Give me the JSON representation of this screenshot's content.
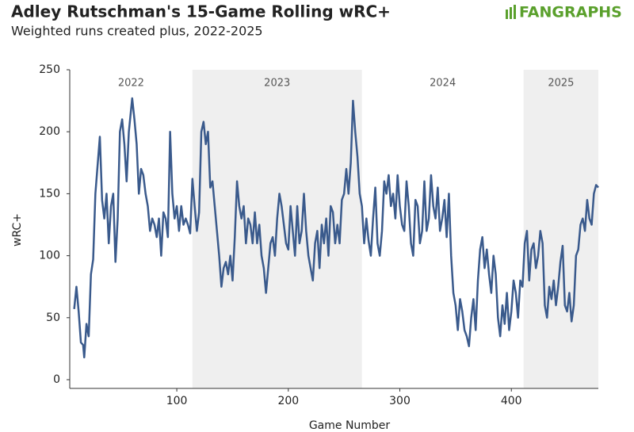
{
  "chart_data": {
    "type": "line",
    "title": "Adley Rutschman's 15-Game Rolling wRC+",
    "subtitle": "Weighted runs created plus, 2022-2025",
    "logo": "FANGRAPHS",
    "x_label": "Game Number",
    "y_label": "wRC+",
    "color": "#3a5a8c",
    "bands": [
      {
        "label": "2022",
        "range": [
          4,
          114
        ],
        "shaded": false
      },
      {
        "label": "2023",
        "range": [
          114,
          266
        ],
        "shaded": true
      },
      {
        "label": "2024",
        "range": [
          266,
          411
        ],
        "shaded": false
      },
      {
        "label": "2025",
        "range": [
          411,
          478
        ],
        "shaded": true
      }
    ],
    "xlim": [
      4,
      478
    ],
    "ylim": [
      0,
      250
    ],
    "xticks": [
      100,
      200,
      300,
      400
    ],
    "yticks": [
      0,
      50,
      100,
      150,
      200,
      250
    ],
    "x": [
      8,
      10,
      12,
      14,
      16,
      17,
      19,
      21,
      23,
      25,
      27,
      31,
      33,
      35,
      37,
      39,
      41,
      43,
      45,
      47,
      49,
      51,
      53,
      55,
      57,
      60,
      62,
      64,
      66,
      68,
      70,
      72,
      74,
      76,
      78,
      80,
      82,
      84,
      86,
      88,
      90,
      92,
      94,
      96,
      98,
      100,
      102,
      104,
      106,
      108,
      110,
      112,
      114,
      116,
      118,
      120,
      122,
      124,
      126,
      128,
      130,
      132,
      134,
      136,
      138,
      140,
      142,
      144,
      146,
      148,
      150,
      152,
      154,
      156,
      158,
      160,
      162,
      164,
      166,
      168,
      170,
      172,
      174,
      176,
      178,
      180,
      182,
      184,
      186,
      188,
      190,
      192,
      194,
      196,
      198,
      200,
      202,
      204,
      206,
      208,
      210,
      212,
      214,
      216,
      218,
      220,
      222,
      224,
      226,
      228,
      230,
      232,
      234,
      236,
      238,
      240,
      242,
      244,
      246,
      248,
      250,
      252,
      254,
      256,
      258,
      260,
      262,
      264,
      266,
      268,
      270,
      272,
      274,
      276,
      278,
      280,
      282,
      284,
      286,
      288,
      290,
      292,
      294,
      296,
      298,
      300,
      302,
      304,
      306,
      308,
      310,
      312,
      314,
      316,
      318,
      320,
      322,
      324,
      326,
      328,
      330,
      332,
      334,
      336,
      338,
      340,
      342,
      344,
      346,
      348,
      350,
      352,
      354,
      356,
      358,
      360,
      362,
      364,
      366,
      368,
      370,
      372,
      374,
      376,
      378,
      380,
      382,
      384,
      386,
      388,
      390,
      392,
      394,
      396,
      398,
      400,
      402,
      404,
      406,
      408,
      410,
      412,
      414,
      416,
      418,
      420,
      422,
      424,
      426,
      428,
      430,
      432,
      434,
      436,
      438,
      440,
      442,
      444,
      446,
      448,
      450,
      452,
      454,
      456,
      458,
      460,
      462,
      464,
      466,
      468,
      470,
      472,
      474,
      476,
      478
    ],
    "values": [
      57,
      75,
      55,
      30,
      28,
      18,
      45,
      35,
      85,
      97,
      150,
      196,
      145,
      130,
      150,
      110,
      140,
      150,
      95,
      130,
      200,
      210,
      190,
      160,
      200,
      227,
      210,
      190,
      150,
      170,
      165,
      150,
      140,
      120,
      130,
      125,
      115,
      130,
      100,
      135,
      130,
      115,
      200,
      150,
      130,
      140,
      120,
      140,
      125,
      130,
      125,
      118,
      162,
      140,
      120,
      135,
      200,
      208,
      190,
      200,
      155,
      160,
      140,
      120,
      100,
      75,
      90,
      95,
      85,
      100,
      80,
      115,
      160,
      140,
      130,
      140,
      110,
      130,
      125,
      110,
      135,
      110,
      125,
      100,
      90,
      70,
      90,
      110,
      115,
      100,
      130,
      150,
      140,
      125,
      110,
      105,
      140,
      120,
      100,
      140,
      110,
      120,
      150,
      120,
      100,
      90,
      80,
      110,
      120,
      90,
      125,
      110,
      130,
      100,
      140,
      135,
      110,
      125,
      110,
      145,
      150,
      170,
      150,
      175,
      225,
      200,
      180,
      150,
      140,
      110,
      130,
      112,
      100,
      130,
      155,
      110,
      100,
      120,
      160,
      150,
      165,
      140,
      150,
      130,
      165,
      140,
      125,
      120,
      160,
      140,
      110,
      100,
      145,
      140,
      110,
      120,
      160,
      120,
      130,
      165,
      140,
      130,
      155,
      120,
      130,
      145,
      115,
      150,
      100,
      70,
      60,
      40,
      65,
      55,
      40,
      35,
      27,
      50,
      65,
      40,
      80,
      105,
      115,
      90,
      105,
      85,
      70,
      100,
      85,
      50,
      35,
      60,
      45,
      70,
      40,
      55,
      80,
      70,
      50,
      80,
      75,
      110,
      120,
      80,
      105,
      110,
      90,
      100,
      120,
      110,
      60,
      50,
      75,
      65,
      80,
      60,
      75,
      95,
      108,
      60,
      55,
      70,
      47,
      60,
      100,
      105,
      125,
      130,
      120,
      145,
      130,
      125,
      150,
      157,
      155
    ]
  }
}
